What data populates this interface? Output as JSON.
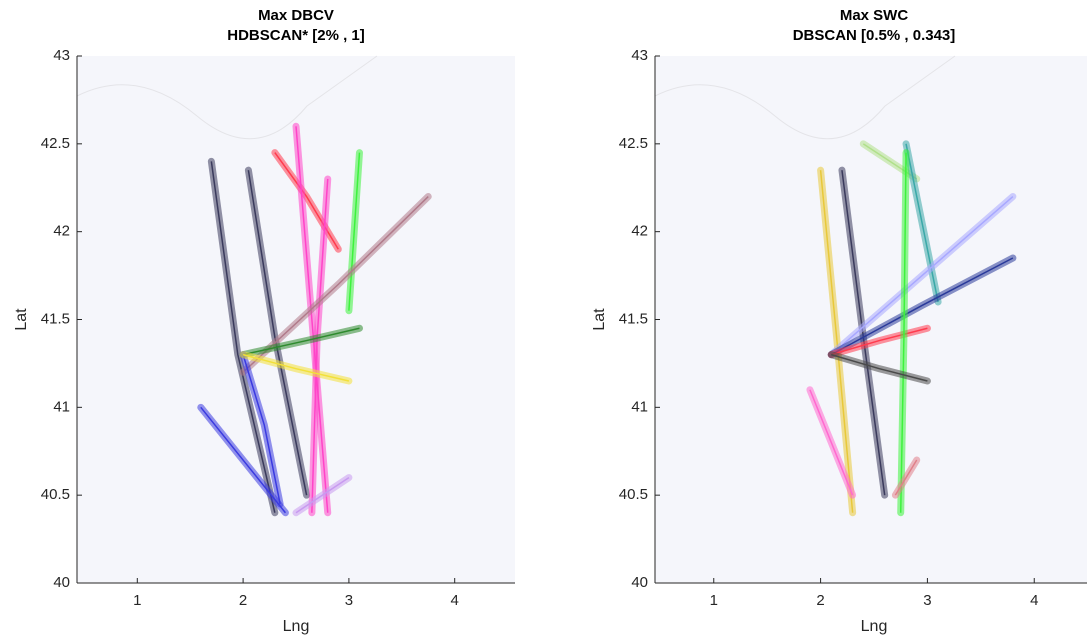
{
  "chart_data": [
    {
      "type": "line",
      "title": "Max DBCV",
      "subtitle": "HDBSCAN* [2% , 1]",
      "xlabel": "Lng",
      "ylabel": "Lat",
      "xlim": [
        0.43,
        4.57
      ],
      "ylim": [
        40,
        43
      ],
      "xticks": [
        1,
        2,
        3,
        4
      ],
      "yticks": [
        40,
        40.5,
        41,
        41.5,
        42,
        42.5,
        43
      ],
      "series": [
        {
          "color": "#3a3a5c",
          "x": [
            1.7,
            1.95,
            2.3
          ],
          "values": [
            42.4,
            41.3,
            40.4
          ]
        },
        {
          "color": "#3a3a5c",
          "x": [
            2.05,
            2.3,
            2.6
          ],
          "values": [
            42.35,
            41.4,
            40.5
          ]
        },
        {
          "color": "#ff3b4e",
          "x": [
            2.3,
            2.6,
            2.9
          ],
          "values": [
            42.45,
            42.2,
            41.9
          ]
        },
        {
          "color": "#ff44c8",
          "x": [
            2.5,
            2.65,
            2.8
          ],
          "values": [
            42.6,
            41.5,
            40.4
          ]
        },
        {
          "color": "#ff44c8",
          "x": [
            2.8,
            2.7,
            2.65
          ],
          "values": [
            42.3,
            41.4,
            40.4
          ]
        },
        {
          "color": "#3df23d",
          "x": [
            3.1,
            3.05,
            3.0
          ],
          "values": [
            42.45,
            42.0,
            41.55
          ]
        },
        {
          "color": "#b07a8a",
          "x": [
            2.0,
            2.9,
            3.75
          ],
          "values": [
            41.2,
            41.7,
            42.2
          ]
        },
        {
          "color": "#2e8a2e",
          "x": [
            2.0,
            2.6,
            3.1
          ],
          "values": [
            41.3,
            41.38,
            41.45
          ]
        },
        {
          "color": "#3a3ae0",
          "x": [
            1.6,
            2.0,
            2.4
          ],
          "values": [
            41.0,
            40.7,
            40.4
          ]
        },
        {
          "color": "#3a3ae0",
          "x": [
            2.0,
            2.2,
            2.35
          ],
          "values": [
            41.3,
            40.9,
            40.45
          ]
        },
        {
          "color": "#f2e03a",
          "x": [
            2.0,
            2.5,
            3.0
          ],
          "values": [
            41.3,
            41.22,
            41.15
          ]
        },
        {
          "color": "#c89af0",
          "x": [
            2.5,
            2.75,
            3.0
          ],
          "values": [
            40.4,
            40.5,
            40.6
          ]
        }
      ]
    },
    {
      "type": "line",
      "title": "Max SWC",
      "subtitle": "DBSCAN [0.5% , 0.343]",
      "xlabel": "Lng",
      "ylabel": "Lat",
      "xlim": [
        0.45,
        4.55
      ],
      "ylim": [
        40,
        43
      ],
      "xticks": [
        1,
        2,
        3,
        4
      ],
      "yticks": [
        40,
        40.5,
        41,
        41.5,
        42,
        42.5,
        43
      ],
      "series": [
        {
          "color": "#3a3a5c",
          "x": [
            2.2,
            2.4,
            2.6
          ],
          "values": [
            42.35,
            41.4,
            40.5
          ]
        },
        {
          "color": "#e8c83a",
          "x": [
            2.0,
            2.15,
            2.3
          ],
          "values": [
            42.35,
            41.4,
            40.4
          ]
        },
        {
          "color": "#b0e08a",
          "x": [
            2.4,
            2.65,
            2.9
          ],
          "values": [
            42.5,
            42.4,
            42.3
          ]
        },
        {
          "color": "#3aa8a8",
          "x": [
            2.8,
            2.95,
            3.1
          ],
          "values": [
            42.5,
            42.05,
            41.6
          ]
        },
        {
          "color": "#a8a8ff",
          "x": [
            2.1,
            2.95,
            3.8
          ],
          "values": [
            41.3,
            41.75,
            42.2
          ]
        },
        {
          "color": "#2a3a9a",
          "x": [
            2.1,
            2.95,
            3.8
          ],
          "values": [
            41.3,
            41.58,
            41.85
          ]
        },
        {
          "color": "#ff3b4e",
          "x": [
            2.1,
            2.55,
            3.0
          ],
          "values": [
            41.3,
            41.38,
            41.45
          ]
        },
        {
          "color": "#3df23d",
          "x": [
            2.8,
            2.78,
            2.75
          ],
          "values": [
            42.45,
            41.4,
            40.4
          ]
        },
        {
          "color": "#ff6ad0",
          "x": [
            1.9,
            2.1,
            2.3
          ],
          "values": [
            41.1,
            40.8,
            40.5
          ]
        },
        {
          "color": "#e0808a",
          "x": [
            2.7,
            2.8,
            2.9
          ],
          "values": [
            40.5,
            40.6,
            40.7
          ]
        },
        {
          "color": "#4a4a4a",
          "x": [
            2.1,
            2.55,
            3.0
          ],
          "values": [
            41.3,
            41.22,
            41.15
          ]
        }
      ]
    }
  ]
}
